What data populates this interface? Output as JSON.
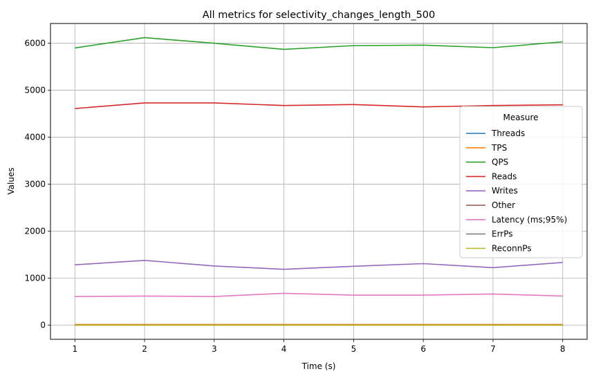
{
  "chart_data": {
    "type": "line",
    "title": "All metrics for selectivity_changes_length_500",
    "xlabel": "Time (s)",
    "ylabel": "Values",
    "x": [
      1,
      2,
      3,
      4,
      5,
      6,
      7,
      8
    ],
    "xticks": [
      "1",
      "2",
      "3",
      "4",
      "5",
      "6",
      "7",
      "8"
    ],
    "yticks": [
      "0",
      "1000",
      "2000",
      "3000",
      "4000",
      "5000",
      "6000"
    ],
    "xlim": [
      0.65,
      8.35
    ],
    "ylim": [
      -300,
      6420
    ],
    "grid": true,
    "legend": {
      "title": "Measure",
      "placement": "center-right"
    },
    "series": [
      {
        "name": "Threads",
        "color": "#1f77b4",
        "values": [
          8,
          8,
          8,
          8,
          8,
          8,
          8,
          8
        ]
      },
      {
        "name": "TPS",
        "color": "#ff7f0e",
        "values": [
          15,
          15,
          15,
          15,
          15,
          15,
          15,
          15
        ]
      },
      {
        "name": "QPS",
        "color": "#2ca02c",
        "values": [
          5900,
          6120,
          6000,
          5870,
          5950,
          5960,
          5905,
          6030
        ]
      },
      {
        "name": "Reads",
        "color": "#d62728",
        "values": [
          4610,
          4730,
          4730,
          4675,
          4695,
          4645,
          4675,
          4690
        ]
      },
      {
        "name": "Writes",
        "color": "#9467bd",
        "values": [
          1285,
          1380,
          1260,
          1190,
          1255,
          1310,
          1225,
          1335
        ]
      },
      {
        "name": "Other",
        "color": "#8c564b",
        "values": [
          5,
          5,
          5,
          5,
          5,
          5,
          5,
          5
        ]
      },
      {
        "name": "Latency (ms;95%)",
        "color": "#e377c2",
        "values": [
          610,
          620,
          610,
          680,
          640,
          640,
          665,
          620
        ]
      },
      {
        "name": "ErrPs",
        "color": "#7f7f7f",
        "values": [
          0,
          0,
          0,
          0,
          0,
          0,
          0,
          0
        ]
      },
      {
        "name": "ReconnPs",
        "color": "#bcbd22",
        "values": [
          0,
          0,
          0,
          0,
          0,
          0,
          0,
          0
        ]
      }
    ]
  }
}
